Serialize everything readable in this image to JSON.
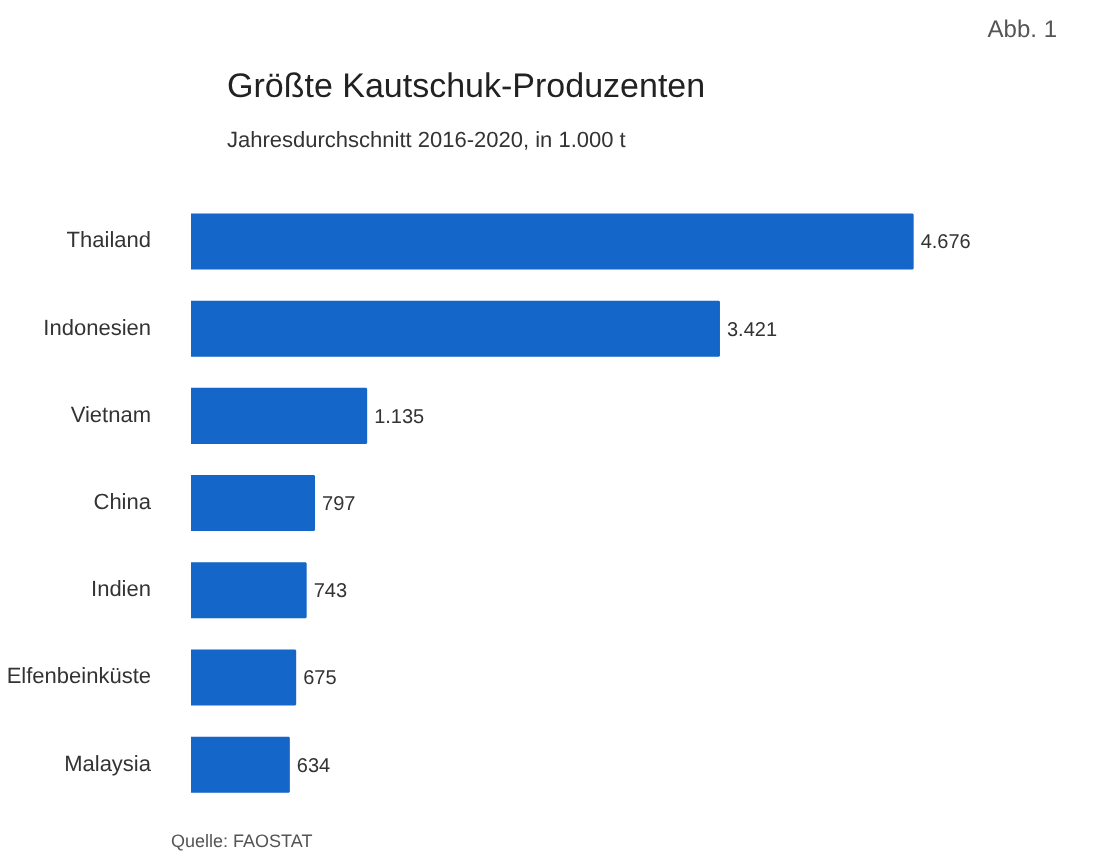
{
  "chart_data": {
    "type": "bar",
    "orientation": "horizontal",
    "title": "Größte Kautschuk-Produzenten",
    "subtitle": "Jahresdurchschnitt 2016-2020, in 1.000 t",
    "categories": [
      "Thailand",
      "Indonesien",
      "Vietnam",
      "China",
      "Indien",
      "Elfenbeinküste",
      "Malaysia"
    ],
    "values": [
      4676,
      3421,
      1135,
      797,
      743,
      675,
      634
    ],
    "value_labels": [
      "4.676",
      "3.421",
      "1.135",
      "797",
      "743",
      "675",
      "634"
    ],
    "color": "#1466c8",
    "annotations": [
      "Abb. 1",
      "Quelle: FAOSTAT"
    ]
  }
}
